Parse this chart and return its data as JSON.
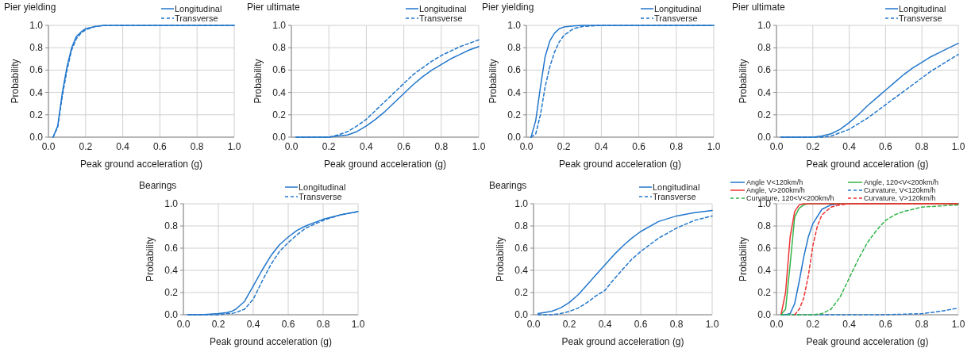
{
  "chart_data": [
    {
      "type": "line",
      "title": "Pier yielding",
      "xlabel": "Peak ground acceleration (g)",
      "ylabel": "Probability",
      "xlim": [
        0,
        1
      ],
      "ylim": [
        0,
        1
      ],
      "xticks": [
        {
          "value": 0,
          "label": "0.0"
        },
        {
          "value": 0.2,
          "label": "0.2"
        },
        {
          "value": 0.4,
          "label": "0.4"
        },
        {
          "value": 0.6,
          "label": "0.6"
        },
        {
          "value": 0.8,
          "label": "0.8"
        },
        {
          "value": 1,
          "label": "1.0"
        }
      ],
      "yticks": [
        {
          "value": 0,
          "label": "0.0"
        },
        {
          "value": 0.2,
          "label": "0.2"
        },
        {
          "value": 0.4,
          "label": "0.4"
        },
        {
          "value": 0.6,
          "label": "0.6"
        },
        {
          "value": 0.8,
          "label": "0.8"
        },
        {
          "value": 1,
          "label": "1.0"
        }
      ],
      "grid": true,
      "legend": "top right",
      "marker": "none",
      "series": [
        {
          "name": "Longitudinal",
          "color": "#2277cc",
          "line_style": "solid",
          "x": [
            0.025,
            0.05,
            0.075,
            0.1,
            0.125,
            0.15,
            0.175,
            0.2,
            0.25,
            0.3,
            0.4,
            1.0
          ],
          "values": [
            0,
            0.1,
            0.4,
            0.63,
            0.8,
            0.9,
            0.94,
            0.97,
            0.99,
            1,
            1,
            1
          ]
        },
        {
          "name": "Transverse",
          "color": "#2277cc",
          "line_style": "dashed",
          "x": [
            0.025,
            0.05,
            0.075,
            0.1,
            0.125,
            0.15,
            0.175,
            0.2,
            0.25,
            0.3,
            0.4,
            1.0
          ],
          "values": [
            0,
            0.09,
            0.37,
            0.6,
            0.78,
            0.88,
            0.93,
            0.96,
            0.99,
            1,
            1,
            1
          ]
        }
      ]
    },
    {
      "type": "line",
      "title": "Pier ultimate",
      "xlabel": "Peak ground acceleration (g)",
      "ylabel": "Probability",
      "xlim": [
        0,
        1
      ],
      "ylim": [
        0,
        1
      ],
      "xticks": [
        {
          "value": 0,
          "label": "0.0"
        },
        {
          "value": 0.2,
          "label": "0.2"
        },
        {
          "value": 0.4,
          "label": "0.4"
        },
        {
          "value": 0.6,
          "label": "0.6"
        },
        {
          "value": 0.8,
          "label": "0.8"
        },
        {
          "value": 1,
          "label": "1.0"
        }
      ],
      "yticks": [
        {
          "value": 0,
          "label": "0.0"
        },
        {
          "value": 0.2,
          "label": "0.2"
        },
        {
          "value": 0.4,
          "label": "0.4"
        },
        {
          "value": 0.6,
          "label": "0.6"
        },
        {
          "value": 0.8,
          "label": "0.8"
        },
        {
          "value": 1,
          "label": "1.0"
        }
      ],
      "grid": true,
      "legend": "top right",
      "marker": "none",
      "series": [
        {
          "name": "Longitudinal",
          "color": "#2277cc",
          "line_style": "solid",
          "x": [
            0.025,
            0.1,
            0.2,
            0.25,
            0.3,
            0.35,
            0.4,
            0.45,
            0.5,
            0.55,
            0.6,
            0.65,
            0.7,
            0.75,
            0.8,
            0.85,
            0.9,
            0.95,
            1.0
          ],
          "values": [
            0,
            0,
            0,
            0.01,
            0.02,
            0.05,
            0.1,
            0.16,
            0.23,
            0.31,
            0.39,
            0.47,
            0.54,
            0.6,
            0.65,
            0.7,
            0.74,
            0.78,
            0.81
          ]
        },
        {
          "name": "Transverse",
          "color": "#2277cc",
          "line_style": "dashed",
          "x": [
            0.025,
            0.1,
            0.2,
            0.25,
            0.3,
            0.35,
            0.4,
            0.45,
            0.5,
            0.55,
            0.6,
            0.65,
            0.7,
            0.75,
            0.8,
            0.85,
            0.9,
            0.95,
            1.0
          ],
          "values": [
            0,
            0,
            0,
            0.02,
            0.05,
            0.1,
            0.16,
            0.24,
            0.32,
            0.4,
            0.48,
            0.56,
            0.62,
            0.68,
            0.73,
            0.77,
            0.81,
            0.84,
            0.87
          ]
        }
      ]
    },
    {
      "type": "line",
      "title": "Pier yielding",
      "xlabel": "Peak ground acceleration (g)",
      "ylabel": "Probability",
      "xlim": [
        0,
        1
      ],
      "ylim": [
        0,
        1
      ],
      "xticks": [
        {
          "value": 0,
          "label": "0.0"
        },
        {
          "value": 0.2,
          "label": "0.2"
        },
        {
          "value": 0.4,
          "label": "0.4"
        },
        {
          "value": 0.6,
          "label": "0.6"
        },
        {
          "value": 0.8,
          "label": "0.8"
        },
        {
          "value": 1,
          "label": "1.0"
        }
      ],
      "yticks": [
        {
          "value": 0,
          "label": "0.0"
        },
        {
          "value": 0.2,
          "label": "0.2"
        },
        {
          "value": 0.4,
          "label": "0.4"
        },
        {
          "value": 0.6,
          "label": "0.6"
        },
        {
          "value": 0.8,
          "label": "0.8"
        },
        {
          "value": 1,
          "label": "1.0"
        }
      ],
      "grid": true,
      "legend": "top right",
      "marker": "none",
      "series": [
        {
          "name": "Longitudinal",
          "color": "#2277cc",
          "line_style": "solid",
          "x": [
            0.025,
            0.05,
            0.075,
            0.1,
            0.125,
            0.15,
            0.175,
            0.2,
            0.25,
            0.3,
            1.0
          ],
          "values": [
            0,
            0.15,
            0.45,
            0.72,
            0.86,
            0.93,
            0.97,
            0.985,
            0.995,
            1,
            1
          ]
        },
        {
          "name": "Transverse",
          "color": "#2277cc",
          "line_style": "dashed",
          "x": [
            0.025,
            0.05,
            0.075,
            0.1,
            0.125,
            0.15,
            0.175,
            0.2,
            0.25,
            0.3,
            0.4,
            1.0
          ],
          "values": [
            0,
            0.03,
            0.2,
            0.45,
            0.63,
            0.76,
            0.85,
            0.91,
            0.97,
            0.99,
            1,
            1
          ]
        }
      ]
    },
    {
      "type": "line",
      "title": "Pier ultimate",
      "xlabel": "Peak ground acceleration (g)",
      "ylabel": "Probability",
      "xlim": [
        0,
        1
      ],
      "ylim": [
        0,
        1
      ],
      "xticks": [
        {
          "value": 0,
          "label": "0.0"
        },
        {
          "value": 0.2,
          "label": "0.2"
        },
        {
          "value": 0.4,
          "label": "0.4"
        },
        {
          "value": 0.6,
          "label": "0.6"
        },
        {
          "value": 0.8,
          "label": "0.8"
        },
        {
          "value": 1,
          "label": "1.0"
        }
      ],
      "yticks": [
        {
          "value": 0,
          "label": "0.0"
        },
        {
          "value": 0.2,
          "label": "0.2"
        },
        {
          "value": 0.4,
          "label": "0.4"
        },
        {
          "value": 0.6,
          "label": "0.6"
        },
        {
          "value": 0.8,
          "label": "0.8"
        },
        {
          "value": 1,
          "label": "1.0"
        }
      ],
      "grid": true,
      "legend": "top right",
      "marker": "none",
      "series": [
        {
          "name": "Longitudinal",
          "color": "#2277cc",
          "line_style": "solid",
          "x": [
            0.025,
            0.1,
            0.2,
            0.25,
            0.3,
            0.35,
            0.4,
            0.45,
            0.5,
            0.55,
            0.6,
            0.65,
            0.7,
            0.75,
            0.8,
            0.85,
            0.9,
            0.95,
            1.0
          ],
          "values": [
            0,
            0,
            0,
            0.01,
            0.03,
            0.07,
            0.13,
            0.2,
            0.28,
            0.35,
            0.42,
            0.49,
            0.56,
            0.62,
            0.67,
            0.72,
            0.76,
            0.8,
            0.84
          ]
        },
        {
          "name": "Transverse",
          "color": "#2277cc",
          "line_style": "dashed",
          "x": [
            0.025,
            0.1,
            0.2,
            0.25,
            0.3,
            0.35,
            0.4,
            0.45,
            0.5,
            0.55,
            0.6,
            0.65,
            0.7,
            0.75,
            0.8,
            0.85,
            0.9,
            0.95,
            1.0
          ],
          "values": [
            0,
            0,
            0,
            0,
            0.01,
            0.04,
            0.07,
            0.12,
            0.17,
            0.23,
            0.29,
            0.35,
            0.41,
            0.47,
            0.53,
            0.59,
            0.64,
            0.69,
            0.74
          ]
        }
      ]
    },
    {
      "type": "line",
      "title": "Bearings",
      "xlabel": "Peak ground acceleration (g)",
      "ylabel": "Probability",
      "xlim": [
        0,
        1
      ],
      "ylim": [
        0,
        1
      ],
      "xticks": [
        {
          "value": 0,
          "label": "0.0"
        },
        {
          "value": 0.2,
          "label": "0.2"
        },
        {
          "value": 0.4,
          "label": "0.4"
        },
        {
          "value": 0.6,
          "label": "0.6"
        },
        {
          "value": 0.8,
          "label": "0.8"
        },
        {
          "value": 1,
          "label": "1.0"
        }
      ],
      "yticks": [
        {
          "value": 0,
          "label": "0.0"
        },
        {
          "value": 0.2,
          "label": "0.2"
        },
        {
          "value": 0.4,
          "label": "0.4"
        },
        {
          "value": 0.6,
          "label": "0.6"
        },
        {
          "value": 0.8,
          "label": "0.8"
        },
        {
          "value": 1,
          "label": "1.0"
        }
      ],
      "grid": true,
      "legend": "top right",
      "marker": "none",
      "series": [
        {
          "name": "Longitudinal",
          "color": "#2277cc",
          "line_style": "solid",
          "x": [
            0.025,
            0.1,
            0.2,
            0.25,
            0.275,
            0.3,
            0.35,
            0.4,
            0.45,
            0.5,
            0.55,
            0.6,
            0.65,
            0.7,
            0.8,
            0.9,
            1.0
          ],
          "values": [
            0,
            0,
            0.01,
            0.02,
            0.03,
            0.05,
            0.12,
            0.26,
            0.4,
            0.53,
            0.63,
            0.7,
            0.76,
            0.8,
            0.86,
            0.9,
            0.93
          ]
        },
        {
          "name": "Transverse",
          "color": "#2277cc",
          "line_style": "dashed",
          "x": [
            0.025,
            0.1,
            0.2,
            0.25,
            0.275,
            0.3,
            0.35,
            0.4,
            0.45,
            0.5,
            0.55,
            0.6,
            0.65,
            0.7,
            0.8,
            0.9,
            1.0
          ],
          "values": [
            0,
            0,
            0,
            0.01,
            0.01,
            0.02,
            0.05,
            0.14,
            0.3,
            0.45,
            0.57,
            0.65,
            0.72,
            0.78,
            0.85,
            0.9,
            0.93
          ]
        }
      ]
    },
    {
      "type": "line",
      "title": "Bearings",
      "xlabel": "Peak ground acceleration (g)",
      "ylabel": "Probability",
      "xlim": [
        0,
        1
      ],
      "ylim": [
        0,
        1
      ],
      "xticks": [
        {
          "value": 0,
          "label": "0.0"
        },
        {
          "value": 0.2,
          "label": "0.2"
        },
        {
          "value": 0.4,
          "label": "0.4"
        },
        {
          "value": 0.6,
          "label": "0.6"
        },
        {
          "value": 0.8,
          "label": "0.8"
        },
        {
          "value": 1,
          "label": "1.0"
        }
      ],
      "yticks": [
        {
          "value": 0,
          "label": "0.0"
        },
        {
          "value": 0.2,
          "label": "0.2"
        },
        {
          "value": 0.4,
          "label": "0.4"
        },
        {
          "value": 0.6,
          "label": "0.6"
        },
        {
          "value": 0.8,
          "label": "0.8"
        },
        {
          "value": 1,
          "label": "1.0"
        }
      ],
      "grid": true,
      "legend": "top right",
      "marker": "none",
      "series": [
        {
          "name": "Longitudinal",
          "color": "#2277cc",
          "line_style": "solid",
          "x": [
            0.025,
            0.1,
            0.15,
            0.2,
            0.25,
            0.3,
            0.35,
            0.4,
            0.45,
            0.5,
            0.55,
            0.6,
            0.7,
            0.8,
            0.9,
            1.0
          ],
          "values": [
            0.01,
            0.03,
            0.06,
            0.11,
            0.18,
            0.27,
            0.36,
            0.45,
            0.54,
            0.62,
            0.69,
            0.75,
            0.84,
            0.89,
            0.92,
            0.94
          ]
        },
        {
          "name": "Transverse",
          "color": "#2277cc",
          "line_style": "dashed",
          "x": [
            0.025,
            0.1,
            0.15,
            0.2,
            0.25,
            0.3,
            0.35,
            0.4,
            0.45,
            0.5,
            0.55,
            0.6,
            0.7,
            0.8,
            0.9,
            1.0
          ],
          "values": [
            0,
            0,
            0.01,
            0.03,
            0.06,
            0.11,
            0.17,
            0.22,
            0.32,
            0.41,
            0.5,
            0.57,
            0.69,
            0.78,
            0.85,
            0.89
          ]
        }
      ]
    },
    {
      "type": "line",
      "xlabel": "Peak ground acceleration (g)",
      "ylabel": "Probability",
      "xlim": [
        0,
        1
      ],
      "ylim": [
        0,
        1
      ],
      "xticks": [
        {
          "value": 0,
          "label": "0.0"
        },
        {
          "value": 0.2,
          "label": "0.2"
        },
        {
          "value": 0.4,
          "label": "0.4"
        },
        {
          "value": 0.6,
          "label": "0.6"
        },
        {
          "value": 0.8,
          "label": "0.8"
        },
        {
          "value": 1,
          "label": "1.0"
        }
      ],
      "yticks": [
        {
          "value": 0,
          "label": "0.0"
        },
        {
          "value": 0.2,
          "label": "0.2"
        },
        {
          "value": 0.4,
          "label": "0.4"
        },
        {
          "value": 0.6,
          "label": "0.6"
        },
        {
          "value": 0.8,
          "label": "0.8"
        },
        {
          "value": 1,
          "label": "1.0"
        }
      ],
      "grid": true,
      "legend": "top",
      "marker": "none",
      "series": [
        {
          "name": "Angle V<120km/h",
          "color": "#2277cc",
          "line_style": "solid",
          "x": [
            0.025,
            0.05,
            0.075,
            0.1,
            0.125,
            0.15,
            0.175,
            0.2,
            0.25,
            0.3,
            0.35,
            1.0
          ],
          "values": [
            0,
            0,
            0.01,
            0.1,
            0.3,
            0.52,
            0.7,
            0.82,
            0.95,
            0.99,
            1,
            1
          ]
        },
        {
          "name": "Angle, 120<V<200km/h",
          "color": "#33b54a",
          "line_style": "solid",
          "x": [
            0.025,
            0.05,
            0.075,
            0.1,
            0.125,
            0.15,
            0.175,
            0.2,
            1.0
          ],
          "values": [
            0,
            0.05,
            0.45,
            0.88,
            0.96,
            0.99,
            1,
            1,
            1
          ]
        },
        {
          "name": "Angle, V>200km/h",
          "color": "#ee3333",
          "line_style": "solid",
          "x": [
            0.025,
            0.05,
            0.075,
            0.1,
            0.125,
            0.15,
            1.0
          ],
          "values": [
            0,
            0.2,
            0.7,
            0.93,
            0.99,
            1,
            1
          ]
        },
        {
          "name": "Curvature, V<120km/h",
          "color": "#2277cc",
          "line_style": "dashed",
          "x": [
            0.025,
            0.6,
            0.7,
            0.8,
            0.9,
            1.0
          ],
          "values": [
            0,
            0,
            0.005,
            0.01,
            0.03,
            0.06
          ]
        },
        {
          "name": "Curvature, 120<V<200km/h",
          "color": "#33b54a",
          "line_style": "dashed",
          "x": [
            0.025,
            0.2,
            0.25,
            0.3,
            0.35,
            0.4,
            0.45,
            0.5,
            0.55,
            0.6,
            0.65,
            0.7,
            0.8,
            0.9,
            1.0
          ],
          "values": [
            0,
            0,
            0.01,
            0.05,
            0.16,
            0.33,
            0.5,
            0.65,
            0.76,
            0.85,
            0.9,
            0.93,
            0.97,
            0.98,
            0.99
          ]
        },
        {
          "name": "Curvature, V>120km/h",
          "color": "#ee3333",
          "line_style": "dashed",
          "x": [
            0.1,
            0.125,
            0.15,
            0.175,
            0.2,
            0.225,
            0.25,
            0.3,
            0.35,
            0.4,
            0.5,
            1.0
          ],
          "values": [
            0,
            0.05,
            0.15,
            0.35,
            0.62,
            0.8,
            0.9,
            0.97,
            0.99,
            1,
            1,
            1
          ]
        }
      ]
    }
  ]
}
